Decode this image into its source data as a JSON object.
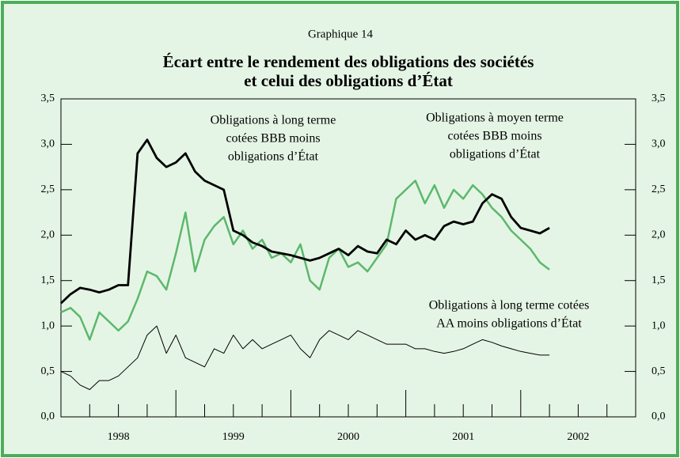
{
  "chart_data": {
    "type": "line",
    "kicker": "Graphique 14",
    "title": [
      "Écart entre le rendement des obligations des sociétés",
      "et celui des obligations d’État"
    ],
    "x": [
      1998,
      1998.083,
      1998.167,
      1998.25,
      1998.333,
      1998.417,
      1998.5,
      1998.583,
      1998.667,
      1998.75,
      1998.833,
      1998.917,
      1999,
      1999.083,
      1999.167,
      1999.25,
      1999.333,
      1999.417,
      1999.5,
      1999.583,
      1999.667,
      1999.75,
      1999.833,
      1999.917,
      2000,
      2000.083,
      2000.167,
      2000.25,
      2000.333,
      2000.417,
      2000.5,
      2000.583,
      2000.667,
      2000.75,
      2000.833,
      2000.917,
      2001,
      2001.083,
      2001.167,
      2001.25,
      2001.333,
      2001.417,
      2001.5,
      2001.583,
      2001.667,
      2001.75,
      2001.833,
      2001.917,
      2002,
      2002.083,
      2002.167,
      2002.25
    ],
    "xlim": [
      1998,
      2003
    ],
    "xticks": [
      1999,
      2000,
      2001,
      2002
    ],
    "xticks_minor": [
      1998.25,
      1998.5,
      1998.75,
      1999.25,
      1999.5,
      1999.75,
      2000.25,
      2000.5,
      2000.75,
      2001.25,
      2001.5,
      2001.75,
      2002.25,
      2002.5,
      2002.75
    ],
    "x_labels": [
      {
        "value": 1998.5,
        "label": "1998"
      },
      {
        "value": 1999.5,
        "label": "1999"
      },
      {
        "value": 2000.5,
        "label": "2000"
      },
      {
        "value": 2001.5,
        "label": "2001"
      },
      {
        "value": 2002.5,
        "label": "2002"
      }
    ],
    "ylim": [
      0,
      3.5
    ],
    "yticks": [
      {
        "value": 0,
        "label": "0,0"
      },
      {
        "value": 0.5,
        "label": "0,5"
      },
      {
        "value": 1,
        "label": "1,0"
      },
      {
        "value": 1.5,
        "label": "1,5"
      },
      {
        "value": 2,
        "label": "2,0"
      },
      {
        "value": 2.5,
        "label": "2,5"
      },
      {
        "value": 3,
        "label": "3,0"
      },
      {
        "value": 3.5,
        "label": "3,5"
      }
    ],
    "series": [
      {
        "name": [
          "Obligations à moyen terme",
          "cotées BBB moins",
          "obligations d’État"
        ],
        "color": "#5cb86c",
        "width": 2.5,
        "values": [
          1.15,
          1.2,
          1.1,
          0.85,
          1.15,
          1.05,
          0.95,
          1.05,
          1.3,
          1.6,
          1.55,
          1.4,
          1.8,
          2.25,
          1.6,
          1.95,
          2.1,
          2.2,
          1.9,
          2.05,
          1.85,
          1.95,
          1.75,
          1.8,
          1.7,
          1.9,
          1.5,
          1.4,
          1.75,
          1.85,
          1.65,
          1.7,
          1.6,
          1.75,
          1.9,
          2.4,
          2.5,
          2.6,
          2.35,
          2.55,
          2.3,
          2.5,
          2.4,
          2.55,
          2.45,
          2.3,
          2.2,
          2.05,
          1.95,
          1.85,
          1.7,
          1.62
        ]
      },
      {
        "name": [
          "Obligations à long terme",
          "cotées BBB moins",
          "obligations d’État"
        ],
        "color": "#000000",
        "width": 2.8,
        "values": [
          1.25,
          1.35,
          1.42,
          1.4,
          1.37,
          1.4,
          1.45,
          1.45,
          2.9,
          3.05,
          2.85,
          2.75,
          2.8,
          2.9,
          2.7,
          2.6,
          2.55,
          2.5,
          2.05,
          2.0,
          1.92,
          1.88,
          1.82,
          1.8,
          1.78,
          1.75,
          1.72,
          1.75,
          1.8,
          1.85,
          1.78,
          1.88,
          1.82,
          1.8,
          1.95,
          1.9,
          2.05,
          1.95,
          2.0,
          1.95,
          2.1,
          2.15,
          2.12,
          2.15,
          2.35,
          2.45,
          2.4,
          2.2,
          2.08,
          2.05,
          2.02,
          2.08
        ]
      },
      {
        "name": [
          "Obligations à long terme cotées",
          "AA moins obligations d’État"
        ],
        "color": "#000000",
        "width": 1,
        "values": [
          0.5,
          0.45,
          0.35,
          0.3,
          0.4,
          0.4,
          0.45,
          0.55,
          0.65,
          0.9,
          1.0,
          0.7,
          0.9,
          0.65,
          0.6,
          0.55,
          0.75,
          0.7,
          0.9,
          0.75,
          0.85,
          0.75,
          0.8,
          0.85,
          0.9,
          0.75,
          0.65,
          0.85,
          0.95,
          0.9,
          0.85,
          0.95,
          0.9,
          0.85,
          0.8,
          0.8,
          0.8,
          0.75,
          0.75,
          0.72,
          0.7,
          0.72,
          0.75,
          0.8,
          0.85,
          0.82,
          0.78,
          0.75,
          0.72,
          0.7,
          0.68,
          0.68
        ]
      }
    ]
  }
}
